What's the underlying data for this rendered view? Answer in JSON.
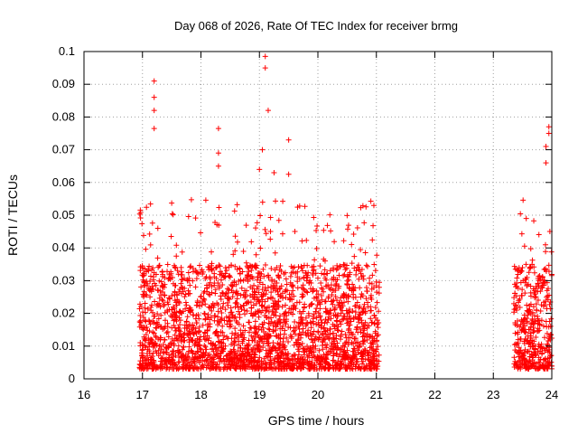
{
  "chart_data": {
    "type": "scatter",
    "title": "Day 068 of 2026, Rate Of TEC Index for receiver brmg",
    "xlabel": "GPS time / hours",
    "ylabel": "ROTI / TECUs",
    "xlim": [
      16,
      24
    ],
    "ylim": [
      0,
      0.1
    ],
    "grid": true,
    "marker": "+",
    "series_color": "#ff0000",
    "x_ticks": [
      16,
      17,
      18,
      19,
      20,
      21,
      22,
      23,
      24
    ],
    "x_tick_labels": [
      "16",
      "17",
      "18",
      "19",
      "20",
      "21",
      "22",
      "23",
      "24"
    ],
    "y_ticks": [
      0,
      0.01,
      0.02,
      0.03,
      0.04,
      0.05,
      0.06,
      0.07,
      0.08,
      0.09,
      0.1
    ],
    "y_tick_labels": [
      "0",
      "0.01",
      "0.02",
      "0.03",
      "0.04",
      "0.05",
      "0.06",
      "0.07",
      "0.08",
      "0.09",
      "0.1"
    ],
    "observation_windows": [
      {
        "start": 16.95,
        "end": 21.05
      },
      {
        "start": 23.35,
        "end": 24.0
      }
    ],
    "typical_range": [
      0.003,
      0.035
    ],
    "notable_points": [
      {
        "x": 17.2,
        "y": 0.091
      },
      {
        "x": 17.2,
        "y": 0.086
      },
      {
        "x": 17.2,
        "y": 0.082
      },
      {
        "x": 17.2,
        "y": 0.0765
      },
      {
        "x": 18.3,
        "y": 0.0765
      },
      {
        "x": 18.3,
        "y": 0.069
      },
      {
        "x": 18.3,
        "y": 0.065
      },
      {
        "x": 19.1,
        "y": 0.0985
      },
      {
        "x": 19.1,
        "y": 0.095
      },
      {
        "x": 19.15,
        "y": 0.082
      },
      {
        "x": 19.05,
        "y": 0.07
      },
      {
        "x": 19.5,
        "y": 0.073
      },
      {
        "x": 19.5,
        "y": 0.0625
      },
      {
        "x": 19.0,
        "y": 0.064
      },
      {
        "x": 19.25,
        "y": 0.063
      },
      {
        "x": 23.95,
        "y": 0.077
      },
      {
        "x": 23.95,
        "y": 0.075
      },
      {
        "x": 23.9,
        "y": 0.071
      },
      {
        "x": 23.9,
        "y": 0.066
      }
    ]
  }
}
